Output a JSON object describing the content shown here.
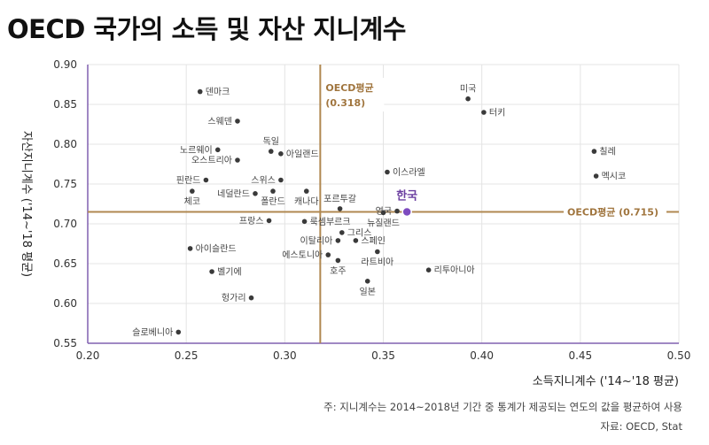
{
  "title": "OECD 국가의 소득 및 자산 지니계수",
  "note": "주: 지니계수는 2014~2018년 기간 중 통계가 제공되는 연도의 값을 평균하여 사용",
  "source": "자료: OECD, Stat",
  "chart_data": {
    "type": "scatter",
    "xlabel": "소득지니계수 ('14~'18 평균)",
    "ylabel": "자산지니계수 ('14~'18 평균)",
    "xlim": [
      0.2,
      0.5
    ],
    "ylim": [
      0.55,
      0.9
    ],
    "xticks": [
      "0.20",
      "0.25",
      "0.30",
      "0.35",
      "0.40",
      "0.45",
      "0.50"
    ],
    "yticks": [
      "0.55",
      "0.60",
      "0.65",
      "0.70",
      "0.75",
      "0.80",
      "0.85",
      "0.90"
    ],
    "grid": true,
    "reference_lines": {
      "x": {
        "value": 0.318,
        "label": "OECD평균",
        "value_label": "(0.318)"
      },
      "y": {
        "value": 0.715,
        "label": "OECD평균 (0.715)"
      }
    },
    "colors": {
      "points": "#3a3a3a",
      "highlight": "#7e4bbf",
      "reference": "#b08850",
      "grid": "#e4e4e4",
      "axis": "#8060b0"
    },
    "highlight": {
      "name": "한국",
      "x": 0.362,
      "y": 0.715
    },
    "points": [
      {
        "name": "덴마크",
        "x": 0.257,
        "y": 0.866,
        "side": "right"
      },
      {
        "name": "스웨덴",
        "x": 0.276,
        "y": 0.829,
        "side": "left"
      },
      {
        "name": "노르웨이",
        "x": 0.266,
        "y": 0.793,
        "side": "left"
      },
      {
        "name": "오스트리아",
        "x": 0.276,
        "y": 0.78,
        "side": "left"
      },
      {
        "name": "핀란드",
        "x": 0.26,
        "y": 0.755,
        "side": "left"
      },
      {
        "name": "체코",
        "x": 0.253,
        "y": 0.741,
        "side": "below"
      },
      {
        "name": "독일",
        "x": 0.293,
        "y": 0.791,
        "side": "above"
      },
      {
        "name": "아일랜드",
        "x": 0.298,
        "y": 0.788,
        "side": "right"
      },
      {
        "name": "스위스",
        "x": 0.298,
        "y": 0.755,
        "side": "left"
      },
      {
        "name": "네덜란드",
        "x": 0.285,
        "y": 0.738,
        "side": "left"
      },
      {
        "name": "폴란드",
        "x": 0.294,
        "y": 0.741,
        "side": "below"
      },
      {
        "name": "캐나다",
        "x": 0.311,
        "y": 0.741,
        "side": "below"
      },
      {
        "name": "포르투갈",
        "x": 0.328,
        "y": 0.719,
        "side": "above"
      },
      {
        "name": "프랑스",
        "x": 0.292,
        "y": 0.704,
        "side": "left"
      },
      {
        "name": "룩셈부르크",
        "x": 0.31,
        "y": 0.703,
        "side": "right"
      },
      {
        "name": "그리스",
        "x": 0.329,
        "y": 0.689,
        "side": "right"
      },
      {
        "name": "이탈리아",
        "x": 0.327,
        "y": 0.679,
        "side": "left"
      },
      {
        "name": "스페인",
        "x": 0.336,
        "y": 0.679,
        "side": "right"
      },
      {
        "name": "에스토니아",
        "x": 0.322,
        "y": 0.661,
        "side": "left"
      },
      {
        "name": "호주",
        "x": 0.327,
        "y": 0.654,
        "side": "below"
      },
      {
        "name": "라트비아",
        "x": 0.347,
        "y": 0.665,
        "side": "below"
      },
      {
        "name": "일본",
        "x": 0.342,
        "y": 0.628,
        "side": "below"
      },
      {
        "name": "영국",
        "x": 0.357,
        "y": 0.716,
        "side": "left"
      },
      {
        "name": "뉴질랜드",
        "x": 0.35,
        "y": 0.714,
        "side": "below"
      },
      {
        "name": "이스라엘",
        "x": 0.352,
        "y": 0.765,
        "side": "right"
      },
      {
        "name": "리투아니아",
        "x": 0.373,
        "y": 0.642,
        "side": "right"
      },
      {
        "name": "미국",
        "x": 0.393,
        "y": 0.857,
        "side": "above"
      },
      {
        "name": "터키",
        "x": 0.401,
        "y": 0.84,
        "side": "right"
      },
      {
        "name": "칠레",
        "x": 0.457,
        "y": 0.791,
        "side": "right"
      },
      {
        "name": "멕시코",
        "x": 0.458,
        "y": 0.76,
        "side": "right"
      },
      {
        "name": "아이슬란드",
        "x": 0.252,
        "y": 0.669,
        "side": "right"
      },
      {
        "name": "벨기에",
        "x": 0.263,
        "y": 0.64,
        "side": "right"
      },
      {
        "name": "헝가리",
        "x": 0.283,
        "y": 0.607,
        "side": "left"
      },
      {
        "name": "슬로베니아",
        "x": 0.246,
        "y": 0.564,
        "side": "left"
      }
    ]
  }
}
